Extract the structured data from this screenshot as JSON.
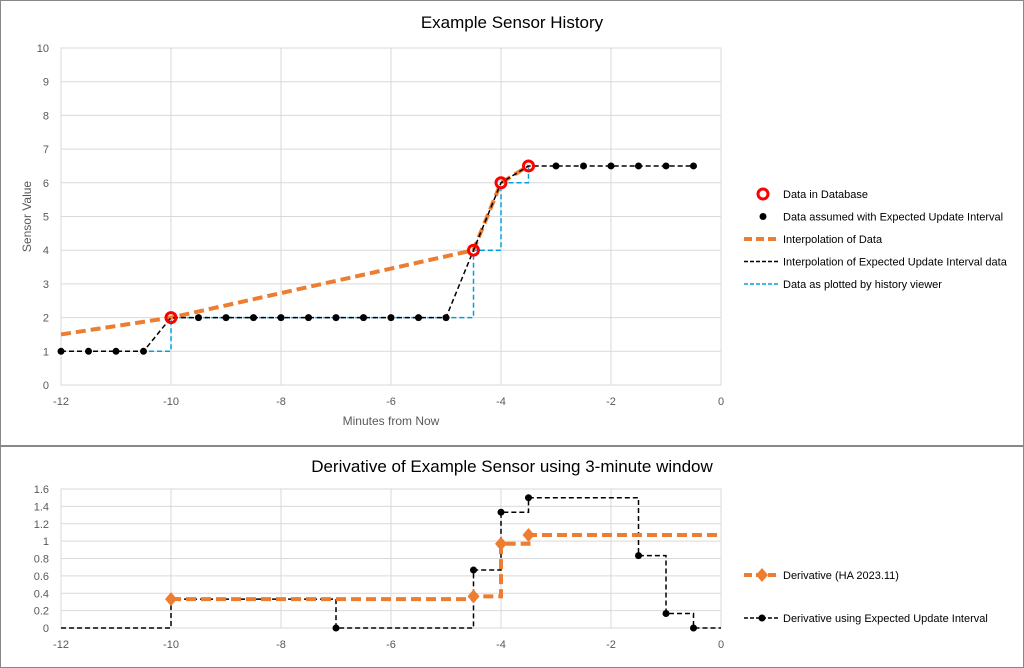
{
  "chart_data": [
    {
      "type": "line",
      "title": "Example Sensor History",
      "xlabel": "Minutes from Now",
      "ylabel": "Sensor Value",
      "xlim": [
        -12,
        0
      ],
      "ylim": [
        0,
        10
      ],
      "xticks": [
        -12,
        -10,
        -8,
        -6,
        -4,
        -2,
        0
      ],
      "yticks": [
        0,
        1,
        2,
        3,
        4,
        5,
        6,
        7,
        8,
        9,
        10
      ],
      "grid": true,
      "legend": "right",
      "series": [
        {
          "name": "Data in Database",
          "style": "marker-circle",
          "color": "#FF0000",
          "x": [
            -10,
            -4.5,
            -4,
            -3.5
          ],
          "y": [
            2,
            4,
            6,
            6.5
          ]
        },
        {
          "name": "Data assumed with Expected Update Interval",
          "style": "marker-dot",
          "color": "#000000",
          "x": [
            -12,
            -11.5,
            -11,
            -10.5,
            -9.5,
            -9,
            -8.5,
            -8,
            -7.5,
            -7,
            -6.5,
            -6,
            -5.5,
            -5,
            -3,
            -2.5,
            -2,
            -1.5,
            -1,
            -0.5
          ],
          "y": [
            1,
            1,
            1,
            1,
            2,
            2,
            2,
            2,
            2,
            2,
            2,
            2,
            2,
            2,
            6.5,
            6.5,
            6.5,
            6.5,
            6.5,
            6.5
          ]
        },
        {
          "name": "Interpolation of Data",
          "style": "dash-thick",
          "color": "#ED7D31",
          "x": [
            -12,
            -10,
            -4.5,
            -4,
            -3.5
          ],
          "y": [
            1.5,
            2,
            4,
            6,
            6.5
          ]
        },
        {
          "name": "Interpolation of Expected Update Interval data",
          "style": "dash",
          "color": "#000000",
          "x": [
            -12,
            -11.5,
            -11,
            -10.5,
            -10,
            -9.5,
            -9,
            -8.5,
            -8,
            -7.5,
            -7,
            -6.5,
            -6,
            -5.5,
            -5,
            -4.5,
            -4,
            -3.5,
            -3,
            -2.5,
            -2,
            -1.5,
            -1,
            -0.5
          ],
          "y": [
            1,
            1,
            1,
            1,
            2,
            2,
            2,
            2,
            2,
            2,
            2,
            2,
            2,
            2,
            2,
            4,
            6,
            6.5,
            6.5,
            6.5,
            6.5,
            6.5,
            6.5,
            6.5
          ]
        },
        {
          "name": "Data as plotted by history viewer",
          "style": "step-dash",
          "color": "#00A0E0",
          "x": [
            -12,
            -10,
            -4.5,
            -4,
            -3.5
          ],
          "y": [
            1,
            2,
            4,
            6,
            6.5
          ]
        }
      ]
    },
    {
      "type": "line",
      "title": "Derivative of Example Sensor using 3-minute window",
      "xlim": [
        -12,
        0
      ],
      "ylim": [
        0,
        1.6
      ],
      "xticks": [
        -12,
        -10,
        -8,
        -6,
        -4,
        -2,
        0
      ],
      "yticks": [
        0,
        0.2,
        0.4,
        0.6,
        0.8,
        1,
        1.2,
        1.4,
        1.6
      ],
      "grid": true,
      "legend": "right",
      "series": [
        {
          "name": "Derivative (HA 2023.11)",
          "style": "step-dash-thick-diamond",
          "color": "#ED7D31",
          "x": [
            -10,
            -4.5,
            -4,
            -3.5
          ],
          "y": [
            0.333,
            0.364,
            0.97,
            1.07
          ],
          "extend_to": 0
        },
        {
          "name": "Derivative using Expected Update Interval",
          "style": "step-dash-dot",
          "color": "#000000",
          "x": [
            -12,
            -10,
            -7,
            -4.5,
            -4,
            -3.5,
            -1.5,
            -1,
            -0.5
          ],
          "y": [
            0,
            0.333,
            0,
            0.667,
            1.333,
            1.5,
            0.833,
            0.167,
            0
          ],
          "markers_from": 1,
          "extend_to": 0
        }
      ]
    }
  ]
}
